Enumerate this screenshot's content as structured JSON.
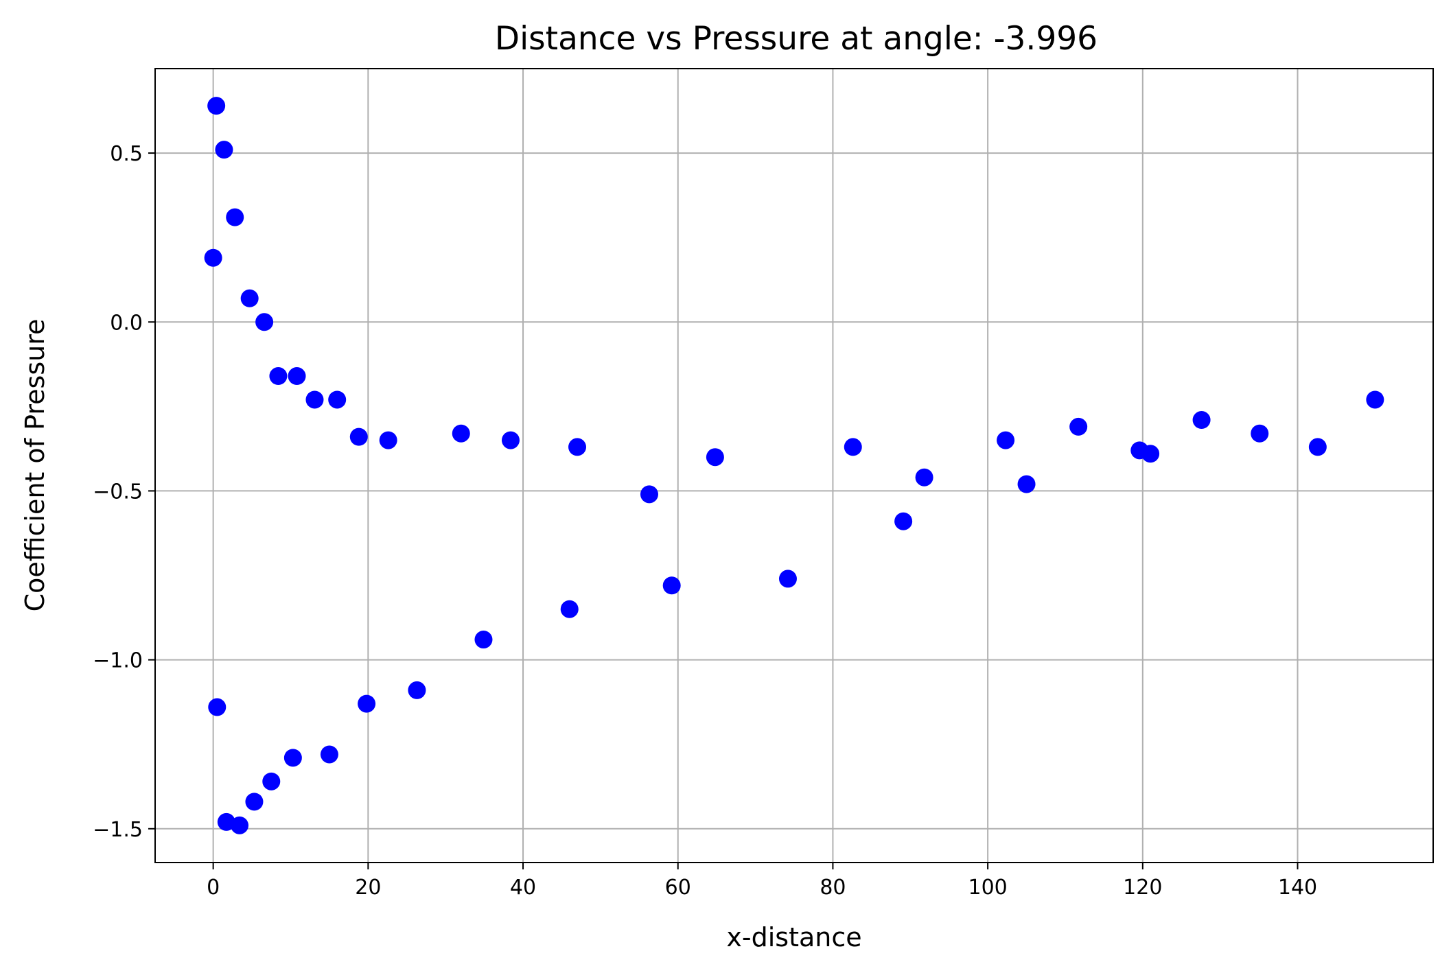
{
  "chart_data": {
    "type": "scatter",
    "title": "Distance vs Pressure at angle: -3.996",
    "xlabel": "x-distance",
    "ylabel": "Coefficient of Pressure",
    "xlim": [
      -7.5,
      157.5
    ],
    "ylim": [
      -1.6,
      0.75
    ],
    "xticks": [
      0,
      20,
      40,
      60,
      80,
      100,
      120,
      140
    ],
    "xtick_labels": [
      "0",
      "20",
      "40",
      "60",
      "80",
      "100",
      "120",
      "140"
    ],
    "yticks": [
      -1.5,
      -1.0,
      -0.5,
      0.0,
      0.5
    ],
    "ytick_labels": [
      "−1.5",
      "−1.0",
      "−0.5",
      "0.0",
      "0.5"
    ],
    "grid": true,
    "marker_color": "#0000ff",
    "points": [
      {
        "x": 0.0,
        "y": 0.19
      },
      {
        "x": 0.4,
        "y": 0.64
      },
      {
        "x": 1.4,
        "y": 0.51
      },
      {
        "x": 2.8,
        "y": 0.31
      },
      {
        "x": 4.7,
        "y": 0.07
      },
      {
        "x": 6.6,
        "y": 0.0
      },
      {
        "x": 8.4,
        "y": -0.16
      },
      {
        "x": 10.8,
        "y": -0.16
      },
      {
        "x": 13.1,
        "y": -0.23
      },
      {
        "x": 16.0,
        "y": -0.23
      },
      {
        "x": 18.8,
        "y": -0.34
      },
      {
        "x": 22.6,
        "y": -0.35
      },
      {
        "x": 32.0,
        "y": -0.33
      },
      {
        "x": 38.4,
        "y": -0.35
      },
      {
        "x": 47.0,
        "y": -0.37
      },
      {
        "x": 56.3,
        "y": -0.51
      },
      {
        "x": 64.8,
        "y": -0.4
      },
      {
        "x": 82.6,
        "y": -0.37
      },
      {
        "x": 91.8,
        "y": -0.46
      },
      {
        "x": 102.3,
        "y": -0.35
      },
      {
        "x": 111.7,
        "y": -0.31
      },
      {
        "x": 119.6,
        "y": -0.38
      },
      {
        "x": 121.0,
        "y": -0.39
      },
      {
        "x": 127.6,
        "y": -0.29
      },
      {
        "x": 135.1,
        "y": -0.33
      },
      {
        "x": 142.6,
        "y": -0.37
      },
      {
        "x": 150.0,
        "y": -0.23
      },
      {
        "x": 0.5,
        "y": -1.14
      },
      {
        "x": 1.7,
        "y": -1.48
      },
      {
        "x": 3.4,
        "y": -1.49
      },
      {
        "x": 5.3,
        "y": -1.42
      },
      {
        "x": 7.5,
        "y": -1.36
      },
      {
        "x": 10.3,
        "y": -1.29
      },
      {
        "x": 15.0,
        "y": -1.28
      },
      {
        "x": 19.8,
        "y": -1.13
      },
      {
        "x": 26.3,
        "y": -1.09
      },
      {
        "x": 34.9,
        "y": -0.94
      },
      {
        "x": 46.0,
        "y": -0.85
      },
      {
        "x": 59.2,
        "y": -0.78
      },
      {
        "x": 74.2,
        "y": -0.76
      },
      {
        "x": 89.1,
        "y": -0.59
      },
      {
        "x": 105.0,
        "y": -0.48
      }
    ]
  }
}
